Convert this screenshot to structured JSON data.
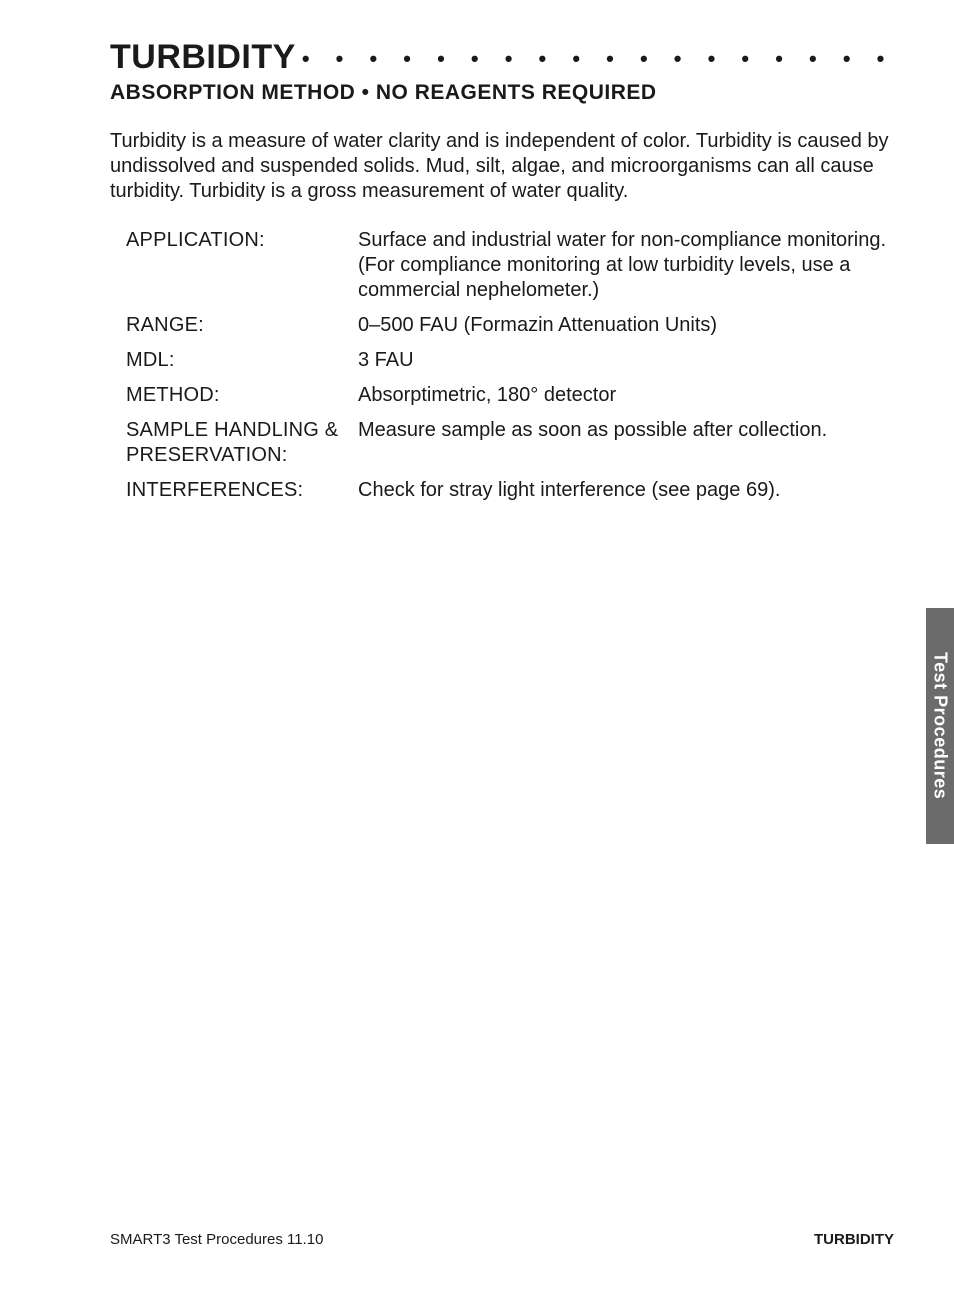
{
  "header": {
    "title": "TURBIDITY",
    "dots": "• • • • • • • • • • • • • • • • • • • • • • • • • • • • • • • • • • • • • • • •",
    "subtitle": "ABSORPTION METHOD • NO REAGENTS REQUIRED"
  },
  "intro": "Turbidity is a measure of water clarity and is independent of color. Turbidity is caused by undissolved and suspended solids. Mud, silt, algae, and microorganisms can all cause turbidity. Turbidity is a gross measurement of water quality.",
  "specs": [
    {
      "label": "APPLICATION:",
      "value": "Surface and industrial water for non-compliance monitoring. (For compliance monitoring at low turbidity levels, use a commercial nephelometer.)"
    },
    {
      "label": "RANGE:",
      "value": "0–500 FAU (Formazin Attenuation Units)"
    },
    {
      "label": "MDL:",
      "value": "3 FAU"
    },
    {
      "label": "METHOD:",
      "value": "Absorptimetric, 180° detector"
    },
    {
      "label": "SAMPLE HANDLING & PRESERVATION:",
      "value": "Measure sample as soon as possible after collection."
    },
    {
      "label": "INTERFERENCES:",
      "value": "Check for stray light interference (see page 69)."
    }
  ],
  "sideTab": "Test Procedures",
  "footer": {
    "left": "SMART3 Test Procedures 11.10",
    "right": "TURBIDITY"
  }
}
